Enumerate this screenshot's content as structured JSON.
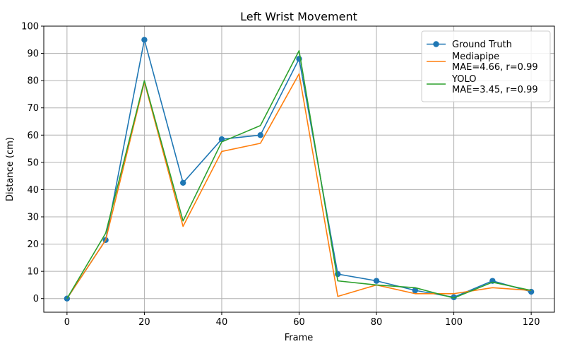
{
  "chart_data": {
    "type": "line",
    "title": "Left Wrist Movement",
    "xlabel": "Frame",
    "ylabel": "Distance (cm)",
    "xlim": [
      -6,
      126
    ],
    "ylim": [
      -5,
      100
    ],
    "xticks": [
      0,
      20,
      40,
      60,
      80,
      100,
      120
    ],
    "yticks": [
      0,
      10,
      20,
      30,
      40,
      50,
      60,
      70,
      80,
      90,
      100
    ],
    "grid": true,
    "legend_position": "top-right",
    "x": [
      0,
      10,
      20,
      30,
      40,
      50,
      60,
      70,
      80,
      90,
      100,
      110,
      120
    ],
    "series": [
      {
        "name": "Ground Truth",
        "label_lines": [
          "Ground Truth"
        ],
        "color": "#1f77b4",
        "marker": "circle",
        "values": [
          0,
          21.5,
          95,
          42.5,
          58.5,
          60,
          88,
          9,
          6.5,
          3,
          0.5,
          6.5,
          2.5
        ]
      },
      {
        "name": "Mediapipe MAE=4.66, r=0.99",
        "label_lines": [
          "Mediapipe",
          "MAE=4.66, r=0.99"
        ],
        "color": "#ff7f0e",
        "marker": "none",
        "values": [
          0,
          21.5,
          79.5,
          26.5,
          54,
          57,
          82.5,
          0.8,
          5,
          1.8,
          1.8,
          4,
          3
        ]
      },
      {
        "name": "YOLO MAE=3.45, r=0.99",
        "label_lines": [
          "YOLO",
          "MAE=3.45, r=0.99"
        ],
        "color": "#2ca02c",
        "marker": "none",
        "values": [
          0,
          24,
          80,
          28.5,
          57.5,
          63.5,
          91,
          6.5,
          5,
          4,
          0.2,
          6,
          3
        ]
      }
    ]
  }
}
